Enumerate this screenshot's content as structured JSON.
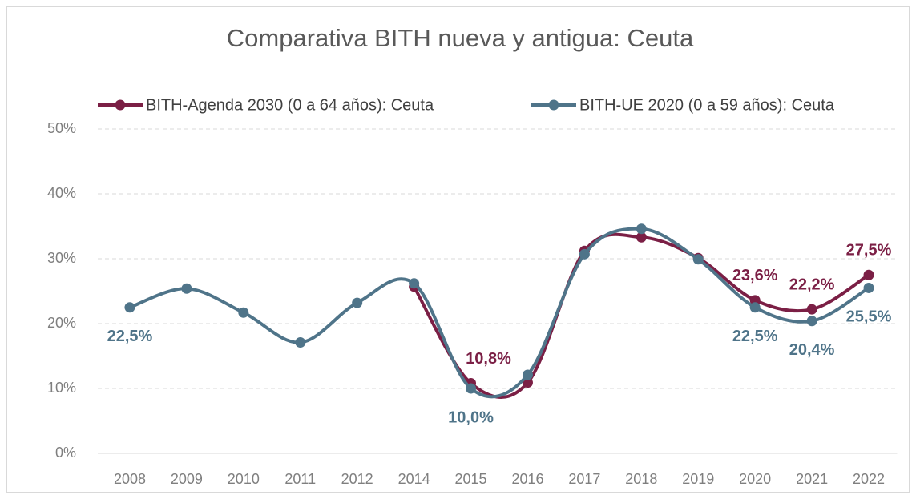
{
  "chart_data": {
    "type": "line",
    "title": "Comparativa BITH nueva y antigua: Ceuta",
    "categories": [
      "2008",
      "2009",
      "2010",
      "2011",
      "2012",
      "2014",
      "2015",
      "2016",
      "2017",
      "2018",
      "2019",
      "2020",
      "2021",
      "2022"
    ],
    "series": [
      {
        "name": "BITH-Agenda 2030 (0 a 64 años): Ceuta",
        "color": "#7b1f45",
        "values": [
          null,
          null,
          null,
          null,
          null,
          25.7,
          10.8,
          10.9,
          31.2,
          33.3,
          30.1,
          23.6,
          22.2,
          27.5
        ],
        "value_labels": [
          null,
          null,
          null,
          null,
          null,
          null,
          "10,8%",
          null,
          null,
          null,
          null,
          "23,6%",
          "22,2%",
          "27,5%"
        ]
      },
      {
        "name": "BITH-UE 2020 (0 a 59 años): Ceuta",
        "color": "#4f7489",
        "values": [
          22.5,
          25.4,
          21.7,
          17.1,
          23.2,
          26.2,
          10.0,
          12.1,
          30.7,
          34.6,
          29.9,
          22.5,
          20.4,
          25.5
        ],
        "value_labels": [
          "22,5%",
          null,
          null,
          null,
          null,
          null,
          "10,0%",
          null,
          null,
          null,
          null,
          "22,5%",
          "20,4%",
          "25,5%"
        ]
      }
    ],
    "ylim": [
      0,
      50
    ],
    "yticks": [
      {
        "value": 0,
        "label": "0%"
      },
      {
        "value": 10,
        "label": "10%"
      },
      {
        "value": 20,
        "label": "20%"
      },
      {
        "value": 30,
        "label": "30%"
      },
      {
        "value": 40,
        "label": "40%"
      },
      {
        "value": 50,
        "label": "50%"
      }
    ],
    "grid": true,
    "smooth": true,
    "legend": "top"
  }
}
